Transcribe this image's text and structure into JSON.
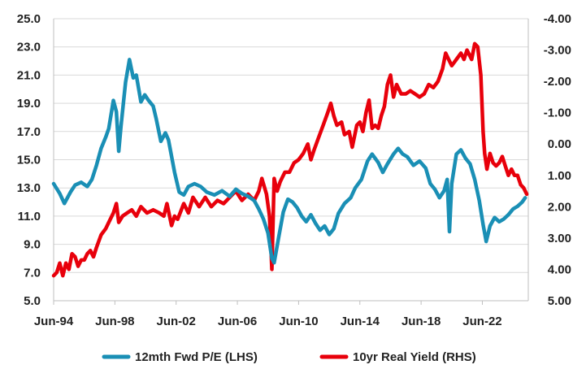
{
  "chart_data": {
    "type": "line",
    "title": "",
    "x_tick_labels": [
      "Jun-94",
      "Jun-98",
      "Jun-02",
      "Jun-06",
      "Jun-10",
      "Jun-14",
      "Jun-18",
      "Jun-22"
    ],
    "x_tick_years": [
      1994.5,
      1998.5,
      2002.5,
      2006.5,
      2010.5,
      2014.5,
      2018.5,
      2022.5
    ],
    "x_range": [
      1994.5,
      2025.5
    ],
    "y_left": {
      "range": [
        5.0,
        25.0
      ],
      "ticks": [
        5.0,
        7.0,
        9.0,
        11.0,
        13.0,
        15.0,
        17.0,
        19.0,
        21.0,
        23.0,
        25.0
      ],
      "tick_labels": [
        "5.0",
        "7.0",
        "9.0",
        "11.0",
        "13.0",
        "15.0",
        "17.0",
        "19.0",
        "21.0",
        "23.0",
        "25.0"
      ]
    },
    "y_right": {
      "inverted": true,
      "range": [
        5.0,
        -4.0
      ],
      "ticks": [
        -4.0,
        -3.0,
        -2.0,
        -1.0,
        0.0,
        1.0,
        2.0,
        3.0,
        4.0,
        5.0
      ],
      "tick_labels": [
        "-4.00",
        "-3.00",
        "-2.00",
        "-1.00",
        "0.00",
        "1.00",
        "2.00",
        "3.00",
        "4.00",
        "5.00"
      ]
    },
    "grid": "horizontal",
    "legend_position": "bottom",
    "series": [
      {
        "name": "12mth Fwd P/E (LHS)",
        "axis": "left",
        "color": "#1a8fb5",
        "points": [
          [
            1994.5,
            13.3
          ],
          [
            1994.9,
            12.6
          ],
          [
            1995.2,
            11.9
          ],
          [
            1995.6,
            12.7
          ],
          [
            1995.9,
            13.2
          ],
          [
            1996.3,
            13.4
          ],
          [
            1996.7,
            13.1
          ],
          [
            1997.0,
            13.6
          ],
          [
            1997.3,
            14.6
          ],
          [
            1997.6,
            15.8
          ],
          [
            1997.9,
            16.6
          ],
          [
            1998.1,
            17.2
          ],
          [
            1998.4,
            19.2
          ],
          [
            1998.6,
            18.4
          ],
          [
            1998.75,
            15.6
          ],
          [
            1998.9,
            17.4
          ],
          [
            1999.2,
            20.5
          ],
          [
            1999.45,
            22.1
          ],
          [
            1999.7,
            20.8
          ],
          [
            1999.9,
            21.0
          ],
          [
            2000.2,
            19.1
          ],
          [
            2000.45,
            19.6
          ],
          [
            2000.7,
            19.2
          ],
          [
            2001.0,
            18.8
          ],
          [
            2001.2,
            17.9
          ],
          [
            2001.5,
            16.3
          ],
          [
            2001.8,
            16.9
          ],
          [
            2002.0,
            16.4
          ],
          [
            2002.4,
            14.1
          ],
          [
            2002.7,
            12.7
          ],
          [
            2003.0,
            12.5
          ],
          [
            2003.3,
            13.1
          ],
          [
            2003.7,
            13.3
          ],
          [
            2004.1,
            13.1
          ],
          [
            2004.5,
            12.7
          ],
          [
            2005.0,
            12.5
          ],
          [
            2005.5,
            12.8
          ],
          [
            2006.0,
            12.4
          ],
          [
            2006.4,
            12.9
          ],
          [
            2006.8,
            12.6
          ],
          [
            2007.2,
            12.4
          ],
          [
            2007.6,
            12.1
          ],
          [
            2007.9,
            11.5
          ],
          [
            2008.2,
            10.8
          ],
          [
            2008.5,
            9.8
          ],
          [
            2008.75,
            8.0
          ],
          [
            2008.9,
            7.7
          ],
          [
            2009.2,
            9.5
          ],
          [
            2009.5,
            11.3
          ],
          [
            2009.8,
            12.2
          ],
          [
            2010.1,
            12.0
          ],
          [
            2010.4,
            11.6
          ],
          [
            2010.7,
            11.0
          ],
          [
            2011.0,
            10.6
          ],
          [
            2011.3,
            11.1
          ],
          [
            2011.6,
            10.5
          ],
          [
            2011.9,
            10.0
          ],
          [
            2012.2,
            10.3
          ],
          [
            2012.5,
            9.7
          ],
          [
            2012.8,
            10.1
          ],
          [
            2013.1,
            11.2
          ],
          [
            2013.5,
            11.9
          ],
          [
            2013.9,
            12.3
          ],
          [
            2014.2,
            13.0
          ],
          [
            2014.6,
            13.6
          ],
          [
            2015.0,
            14.9
          ],
          [
            2015.3,
            15.4
          ],
          [
            2015.7,
            14.8
          ],
          [
            2016.0,
            14.1
          ],
          [
            2016.3,
            14.7
          ],
          [
            2016.7,
            15.4
          ],
          [
            2017.0,
            15.8
          ],
          [
            2017.3,
            15.4
          ],
          [
            2017.6,
            15.2
          ],
          [
            2018.0,
            14.6
          ],
          [
            2018.4,
            14.9
          ],
          [
            2018.8,
            14.4
          ],
          [
            2019.1,
            13.3
          ],
          [
            2019.4,
            12.9
          ],
          [
            2019.7,
            12.3
          ],
          [
            2020.0,
            12.8
          ],
          [
            2020.2,
            13.6
          ],
          [
            2020.35,
            9.9
          ],
          [
            2020.5,
            13.3
          ],
          [
            2020.8,
            15.4
          ],
          [
            2021.1,
            15.7
          ],
          [
            2021.4,
            15.1
          ],
          [
            2021.7,
            14.7
          ],
          [
            2022.0,
            13.6
          ],
          [
            2022.3,
            12.1
          ],
          [
            2022.55,
            10.4
          ],
          [
            2022.75,
            9.2
          ],
          [
            2023.0,
            10.3
          ],
          [
            2023.3,
            10.9
          ],
          [
            2023.6,
            10.6
          ],
          [
            2023.9,
            10.8
          ],
          [
            2024.2,
            11.1
          ],
          [
            2024.5,
            11.5
          ],
          [
            2024.8,
            11.7
          ],
          [
            2025.1,
            12.0
          ],
          [
            2025.3,
            12.3
          ]
        ]
      },
      {
        "name": "10yr Real Yield (RHS)",
        "axis": "right",
        "color": "#e8000b",
        "points": [
          [
            1994.5,
            4.2
          ],
          [
            1994.7,
            4.1
          ],
          [
            1994.9,
            3.8
          ],
          [
            1995.1,
            4.2
          ],
          [
            1995.3,
            3.8
          ],
          [
            1995.5,
            4.0
          ],
          [
            1995.7,
            3.5
          ],
          [
            1995.9,
            3.6
          ],
          [
            1996.1,
            3.9
          ],
          [
            1996.3,
            3.7
          ],
          [
            1996.5,
            3.7
          ],
          [
            1996.7,
            3.5
          ],
          [
            1996.9,
            3.4
          ],
          [
            1997.1,
            3.6
          ],
          [
            1997.3,
            3.3
          ],
          [
            1997.6,
            2.9
          ],
          [
            1997.9,
            2.7
          ],
          [
            1998.1,
            2.5
          ],
          [
            1998.4,
            2.2
          ],
          [
            1998.6,
            1.9
          ],
          [
            1998.75,
            2.5
          ],
          [
            1999.0,
            2.3
          ],
          [
            1999.3,
            2.2
          ],
          [
            1999.6,
            2.1
          ],
          [
            1999.9,
            2.3
          ],
          [
            2000.2,
            2.0
          ],
          [
            2000.6,
            2.2
          ],
          [
            2001.0,
            2.1
          ],
          [
            2001.4,
            2.2
          ],
          [
            2001.7,
            2.3
          ],
          [
            2001.9,
            1.9
          ],
          [
            2002.2,
            2.6
          ],
          [
            2002.4,
            2.3
          ],
          [
            2002.6,
            2.4
          ],
          [
            2003.0,
            1.9
          ],
          [
            2003.3,
            2.2
          ],
          [
            2003.6,
            1.7
          ],
          [
            2004.0,
            2.0
          ],
          [
            2004.4,
            1.7
          ],
          [
            2004.8,
            2.0
          ],
          [
            2005.2,
            1.8
          ],
          [
            2005.6,
            1.9
          ],
          [
            2006.0,
            1.7
          ],
          [
            2006.4,
            1.5
          ],
          [
            2006.8,
            1.8
          ],
          [
            2007.2,
            1.6
          ],
          [
            2007.6,
            1.8
          ],
          [
            2007.9,
            1.5
          ],
          [
            2008.1,
            1.1
          ],
          [
            2008.4,
            1.6
          ],
          [
            2008.6,
            2.3
          ],
          [
            2008.75,
            4.0
          ],
          [
            2008.9,
            1.1
          ],
          [
            2009.1,
            1.5
          ],
          [
            2009.3,
            1.2
          ],
          [
            2009.6,
            0.9
          ],
          [
            2009.9,
            0.9
          ],
          [
            2010.2,
            0.6
          ],
          [
            2010.5,
            0.5
          ],
          [
            2010.8,
            0.3
          ],
          [
            2011.1,
            0.0
          ],
          [
            2011.3,
            0.5
          ],
          [
            2011.5,
            0.2
          ],
          [
            2011.8,
            -0.2
          ],
          [
            2012.1,
            -0.6
          ],
          [
            2012.4,
            -1.0
          ],
          [
            2012.6,
            -1.3
          ],
          [
            2012.8,
            -0.9
          ],
          [
            2013.0,
            -0.6
          ],
          [
            2013.3,
            -0.7
          ],
          [
            2013.5,
            -0.3
          ],
          [
            2013.8,
            -0.4
          ],
          [
            2014.0,
            0.1
          ],
          [
            2014.3,
            -0.6
          ],
          [
            2014.5,
            -0.7
          ],
          [
            2014.7,
            -0.4
          ],
          [
            2014.9,
            -1.0
          ],
          [
            2015.1,
            -1.4
          ],
          [
            2015.3,
            -0.5
          ],
          [
            2015.5,
            -0.6
          ],
          [
            2015.7,
            -0.5
          ],
          [
            2015.9,
            -0.9
          ],
          [
            2016.1,
            -1.2
          ],
          [
            2016.3,
            -1.9
          ],
          [
            2016.5,
            -2.2
          ],
          [
            2016.7,
            -1.5
          ],
          [
            2016.9,
            -1.9
          ],
          [
            2017.2,
            -1.6
          ],
          [
            2017.5,
            -1.6
          ],
          [
            2017.8,
            -1.7
          ],
          [
            2018.1,
            -1.6
          ],
          [
            2018.4,
            -1.5
          ],
          [
            2018.7,
            -1.6
          ],
          [
            2019.0,
            -1.9
          ],
          [
            2019.3,
            -1.8
          ],
          [
            2019.6,
            -2.0
          ],
          [
            2019.9,
            -2.4
          ],
          [
            2020.1,
            -2.9
          ],
          [
            2020.3,
            -2.7
          ],
          [
            2020.5,
            -2.5
          ],
          [
            2020.8,
            -2.7
          ],
          [
            2021.1,
            -2.9
          ],
          [
            2021.3,
            -2.7
          ],
          [
            2021.5,
            -3.0
          ],
          [
            2021.8,
            -2.7
          ],
          [
            2022.0,
            -3.2
          ],
          [
            2022.2,
            -3.1
          ],
          [
            2022.4,
            -2.2
          ],
          [
            2022.55,
            -0.4
          ],
          [
            2022.65,
            0.3
          ],
          [
            2022.8,
            0.8
          ],
          [
            2023.0,
            0.3
          ],
          [
            2023.2,
            0.6
          ],
          [
            2023.4,
            0.7
          ],
          [
            2023.6,
            0.6
          ],
          [
            2023.8,
            0.4
          ],
          [
            2024.0,
            0.7
          ],
          [
            2024.2,
            1.0
          ],
          [
            2024.4,
            0.8
          ],
          [
            2024.6,
            1.0
          ],
          [
            2024.8,
            1.0
          ],
          [
            2025.0,
            1.3
          ],
          [
            2025.2,
            1.4
          ],
          [
            2025.4,
            1.6
          ]
        ]
      }
    ]
  }
}
